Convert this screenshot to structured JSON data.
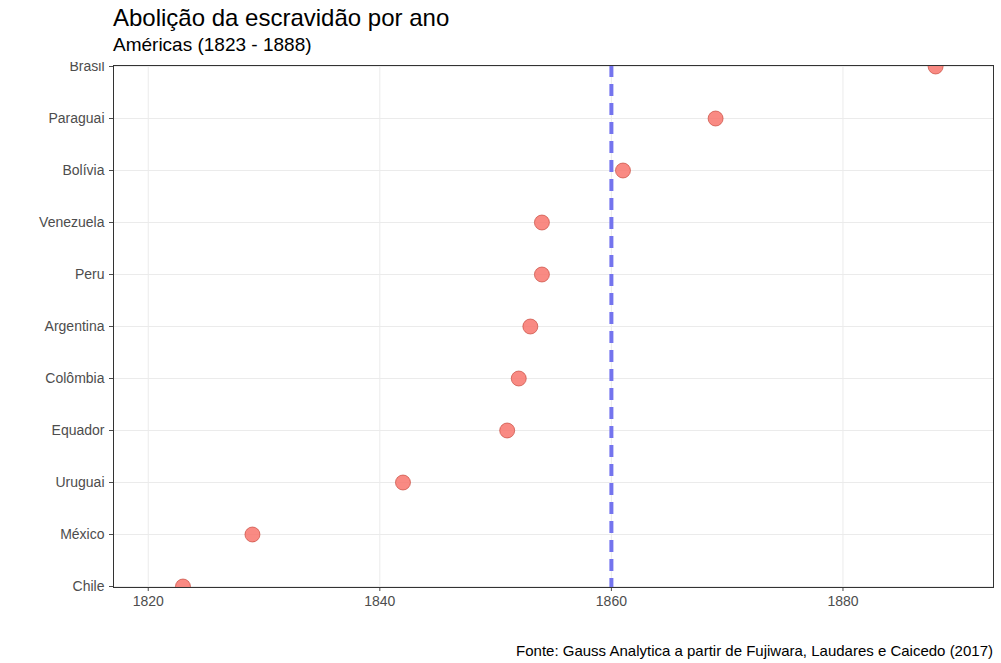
{
  "chart_data": {
    "type": "scatter",
    "title": "Abolição da escravidão por ano",
    "subtitle": "Américas (1823 - 1888)",
    "caption": "Fonte: Gauss Analytica a partir de Fujiwara, Laudares e Caicedo (2017)",
    "categories": [
      "Brasil",
      "Paraguai",
      "Bolívia",
      "Venezuela",
      "Peru",
      "Argentina",
      "Colômbia",
      "Equador",
      "Uruguai",
      "México",
      "Chile"
    ],
    "values": [
      1888,
      1869,
      1861,
      1854,
      1854,
      1853,
      1852,
      1851,
      1842,
      1829,
      1823
    ],
    "color": "#f8766d",
    "orientation": "horizontal",
    "marker": "circle",
    "reference_line": 1860,
    "xlim": [
      1817,
      1893
    ],
    "xticks": [
      1820,
      1840,
      1860,
      1880
    ],
    "grid": true
  }
}
